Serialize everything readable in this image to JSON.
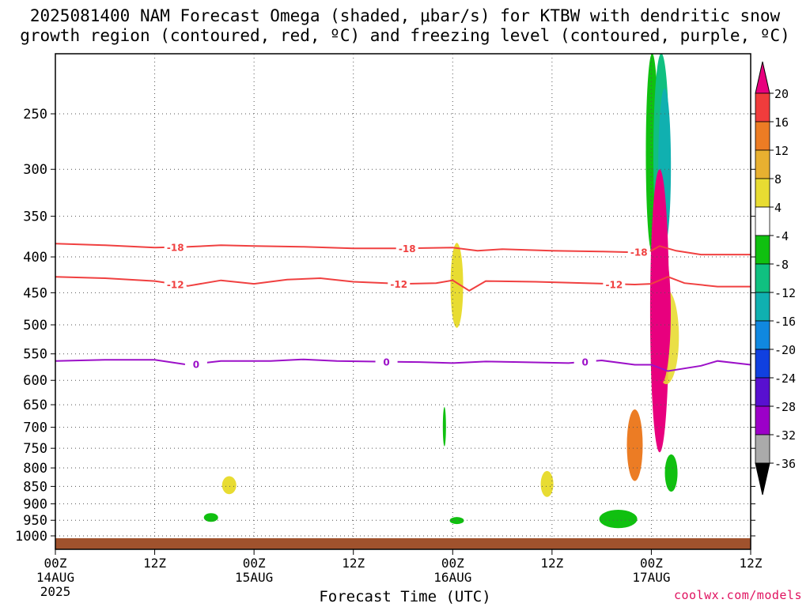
{
  "title": {
    "line1": "2025081400 NAM Forecast Omega (shaded, μbar/s) for KTBW with dendritic snow",
    "line2": "growth region (contoured, red, ºC) and freezing level (contoured, purple, ºC)"
  },
  "xlabel": "Forecast Time (UTC)",
  "credit": "coolwx.com/models",
  "chart_data": {
    "type": "heatmap",
    "x_axis": {
      "range_hours": [
        0,
        84
      ],
      "ticks": [
        {
          "hour": 0,
          "label": "00Z",
          "date": "14AUG",
          "year": "2025"
        },
        {
          "hour": 12,
          "label": "12Z"
        },
        {
          "hour": 24,
          "label": "00Z",
          "date": "15AUG"
        },
        {
          "hour": 36,
          "label": "12Z"
        },
        {
          "hour": 48,
          "label": "00Z",
          "date": "16AUG"
        },
        {
          "hour": 60,
          "label": "12Z"
        },
        {
          "hour": 72,
          "label": "00Z",
          "date": "17AUG"
        },
        {
          "hour": 84,
          "label": "12Z"
        }
      ]
    },
    "y_axis": {
      "type": "log-pressure",
      "range_mb": [
        200,
        1050
      ],
      "tick_labels": [
        "250",
        "300",
        "350",
        "400",
        "450",
        "500",
        "550",
        "600",
        "650",
        "700",
        "750",
        "800",
        "850",
        "900",
        "950",
        "1000"
      ]
    },
    "grid": true,
    "colorbar": {
      "labels": [
        "20",
        "16",
        "12",
        "8",
        "4",
        "-4",
        "-8",
        "-12",
        "-16",
        "-20",
        "-24",
        "-28",
        "-32",
        "-36"
      ],
      "colors": [
        "#e8007e",
        "#f03c3c",
        "#ec7c24",
        "#e8b030",
        "#e8dc32",
        "#ffffff",
        "#10c010",
        "#10c080",
        "#10b0b0",
        "#1088e0",
        "#1040e0",
        "#5810d0",
        "#9c00c8",
        "#aaaaaa",
        "#000000"
      ]
    },
    "contours": [
      {
        "level": -18,
        "color": "#f04040",
        "label": "-18",
        "points": [
          [
            0,
            383
          ],
          [
            6,
            385
          ],
          [
            12,
            388
          ],
          [
            16,
            387
          ],
          [
            20,
            385
          ],
          [
            24,
            386
          ],
          [
            30,
            387
          ],
          [
            36,
            389
          ],
          [
            42,
            389
          ],
          [
            48,
            388
          ],
          [
            51,
            392
          ],
          [
            54,
            390
          ],
          [
            60,
            392
          ],
          [
            66,
            393
          ],
          [
            70,
            394
          ],
          [
            72,
            392
          ],
          [
            73,
            386
          ],
          [
            75,
            392
          ],
          [
            78,
            397
          ],
          [
            84,
            397
          ]
        ]
      },
      {
        "level": -12,
        "color": "#f04040",
        "label": "-12",
        "points": [
          [
            0,
            427
          ],
          [
            6,
            429
          ],
          [
            12,
            433
          ],
          [
            16,
            440
          ],
          [
            20,
            432
          ],
          [
            24,
            437
          ],
          [
            28,
            431
          ],
          [
            32,
            429
          ],
          [
            36,
            434
          ],
          [
            42,
            437
          ],
          [
            46,
            436
          ],
          [
            48,
            432
          ],
          [
            50,
            447
          ],
          [
            52,
            433
          ],
          [
            58,
            434
          ],
          [
            64,
            436
          ],
          [
            70,
            438
          ],
          [
            72,
            437
          ],
          [
            74,
            427
          ],
          [
            76,
            436
          ],
          [
            80,
            441
          ],
          [
            84,
            441
          ]
        ]
      },
      {
        "level": 0,
        "color": "#9c10c8",
        "label": "0",
        "points": [
          [
            0,
            563
          ],
          [
            6,
            561
          ],
          [
            12,
            561
          ],
          [
            16,
            570
          ],
          [
            20,
            563
          ],
          [
            26,
            563
          ],
          [
            30,
            560
          ],
          [
            34,
            563
          ],
          [
            38,
            564
          ],
          [
            44,
            565
          ],
          [
            48,
            567
          ],
          [
            52,
            564
          ],
          [
            56,
            565
          ],
          [
            62,
            567
          ],
          [
            66,
            562
          ],
          [
            70,
            570
          ],
          [
            72,
            570
          ],
          [
            74,
            582
          ],
          [
            78,
            572
          ],
          [
            80,
            563
          ],
          [
            84,
            570
          ]
        ]
      }
    ],
    "contour_labels": [
      {
        "level": "-18",
        "hour": 14.5
      },
      {
        "level": "-18",
        "hour": 42.5
      },
      {
        "level": "-18",
        "hour": 70.5
      },
      {
        "level": "-12",
        "hour": 14.5
      },
      {
        "level": "-12",
        "hour": 41.5
      },
      {
        "level": "-12",
        "hour": 67.5
      },
      {
        "level": "0",
        "hour": 17
      },
      {
        "level": "0",
        "hour": 40
      },
      {
        "level": "0",
        "hour": 64
      }
    ],
    "omega_regions": [
      {
        "value_range": "4 to 8",
        "color": "#e8dc32",
        "hour_center": 48.5,
        "p_range": [
          382,
          505
        ]
      },
      {
        "value_range": "4 to 8",
        "color": "#e8dc32",
        "hour_center": 21.0,
        "p_range": [
          822,
          872
        ]
      },
      {
        "value_range": "4 to 8",
        "color": "#e8dc32",
        "hour_center": 59.4,
        "p_range": [
          808,
          880
        ]
      },
      {
        "value_range": "-8 to -4",
        "color": "#10c010",
        "hour_center": 18.8,
        "p_range": [
          928,
          955
        ]
      },
      {
        "value_range": "-8 to -4",
        "color": "#10c010",
        "hour_center": 48.5,
        "p_range": [
          940,
          962
        ]
      },
      {
        "value_range": "-8 to -4",
        "color": "#10c010",
        "hour_center": 47.0,
        "p_range": [
          655,
          745
        ]
      },
      {
        "value_range": "-8 to -4",
        "color": "#10c010",
        "hour_center": 68.0,
        "p_range": [
          918,
          975
        ]
      },
      {
        "value_range": "-8 to -4",
        "color": "#10c010",
        "hour_center": 72.1,
        "p_range": [
          205,
          395
        ]
      },
      {
        "value_range": "-8 to -4",
        "color": "#10c010",
        "hour_center": 74.4,
        "p_range": [
          765,
          865
        ]
      },
      {
        "value_range": "-12 to -8",
        "color": "#10c080",
        "hour_center": 73.2,
        "p_range": [
          205,
          400
        ]
      },
      {
        "value_range": "-16 to -12",
        "color": "#10b0b0",
        "hour_center": 73.6,
        "p_range": [
          230,
          385
        ]
      },
      {
        "value_range": "4 to 20+",
        "color": "#e8007e",
        "hour_center": 73.0,
        "p_range": [
          300,
          760
        ]
      },
      {
        "value_range": "4 to 12",
        "color": "#ec7c24",
        "hour_center": 70.0,
        "p_range": [
          660,
          835
        ]
      }
    ],
    "terrain_color": "#a0522d"
  }
}
